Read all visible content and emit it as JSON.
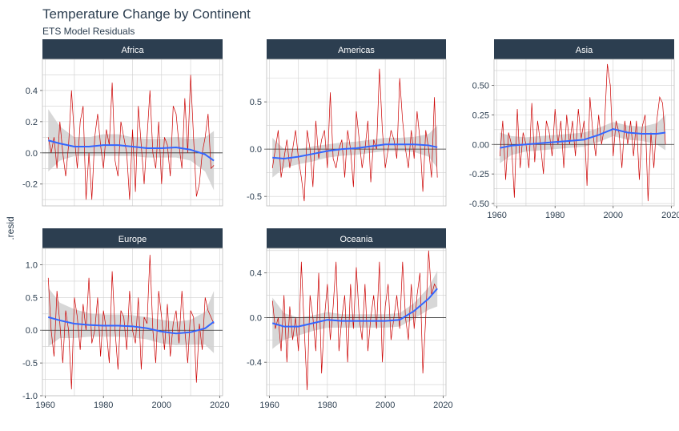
{
  "title": "Temperature Change by Continent",
  "subtitle": "ETS Model Residuals",
  "chart_data": {
    "type": "line",
    "title": "Temperature Change by Continent",
    "subtitle": "ETS Model Residuals",
    "ylabel": ".resid",
    "xlabel": "",
    "colors": {
      "residual": "#cc0000",
      "smooth": "#3366ff",
      "band": "#d0d0d0",
      "strip": "#2c3e50"
    },
    "panels": [
      {
        "name": "Africa",
        "xlim": [
          1959,
          2021
        ],
        "ylim": [
          -0.34,
          0.6
        ],
        "yticks": [
          -0.2,
          0.0,
          0.2,
          0.4
        ],
        "ytick_labels": [
          "-0.2",
          "0.0",
          "0.2",
          "0.4"
        ],
        "xticks": [],
        "x": [
          1961,
          1962,
          1963,
          1964,
          1965,
          1966,
          1967,
          1968,
          1969,
          1970,
          1971,
          1972,
          1973,
          1974,
          1975,
          1976,
          1977,
          1978,
          1979,
          1980,
          1981,
          1982,
          1983,
          1984,
          1985,
          1986,
          1987,
          1988,
          1989,
          1990,
          1991,
          1992,
          1993,
          1994,
          1995,
          1996,
          1997,
          1998,
          1999,
          2000,
          2001,
          2002,
          2003,
          2004,
          2005,
          2006,
          2007,
          2008,
          2009,
          2010,
          2011,
          2012,
          2013,
          2014,
          2015,
          2016,
          2017,
          2018
        ],
        "values": [
          0.1,
          0.0,
          0.1,
          -0.1,
          0.2,
          0.0,
          -0.15,
          0.05,
          0.4,
          0.1,
          -0.1,
          0.2,
          0.3,
          -0.3,
          0.0,
          -0.3,
          0.1,
          0.25,
          0.05,
          -0.1,
          0.15,
          0.05,
          0.45,
          -0.05,
          -0.15,
          0.2,
          0.1,
          0.0,
          -0.3,
          0.15,
          -0.25,
          0.3,
          0.05,
          -0.2,
          0.1,
          0.4,
          0.0,
          -0.1,
          0.2,
          -0.2,
          0.1,
          0.05,
          -0.15,
          0.3,
          0.25,
          0.05,
          -0.1,
          0.35,
          0.0,
          0.5,
          0.1,
          -0.28,
          -0.2,
          0.0,
          0.1,
          0.25,
          -0.1,
          -0.08
        ],
        "smooth_x": [
          1961,
          1965,
          1970,
          1975,
          1980,
          1985,
          1990,
          1995,
          2000,
          2005,
          2010,
          2015,
          2018
        ],
        "smooth_y": [
          0.08,
          0.06,
          0.04,
          0.04,
          0.05,
          0.05,
          0.04,
          0.03,
          0.03,
          0.035,
          0.02,
          -0.01,
          -0.05
        ],
        "band_lo": [
          -0.12,
          -0.05,
          -0.02,
          -0.02,
          -0.02,
          -0.02,
          -0.02,
          -0.03,
          -0.03,
          -0.03,
          -0.05,
          -0.12,
          -0.24
        ],
        "band_hi": [
          0.28,
          0.17,
          0.1,
          0.1,
          0.12,
          0.12,
          0.1,
          0.09,
          0.09,
          0.1,
          0.09,
          0.1,
          0.14
        ]
      },
      {
        "name": "Americas",
        "xlim": [
          1959,
          2021
        ],
        "ylim": [
          -0.6,
          0.95
        ],
        "yticks": [
          -0.5,
          0.0,
          0.5
        ],
        "ytick_labels": [
          "-0.5",
          "0.0",
          "0.5"
        ],
        "xticks": [],
        "x": [
          1961,
          1962,
          1963,
          1964,
          1965,
          1966,
          1967,
          1968,
          1969,
          1970,
          1971,
          1972,
          1973,
          1974,
          1975,
          1976,
          1977,
          1978,
          1979,
          1980,
          1981,
          1982,
          1983,
          1984,
          1985,
          1986,
          1987,
          1988,
          1989,
          1990,
          1991,
          1992,
          1993,
          1994,
          1995,
          1996,
          1997,
          1998,
          1999,
          2000,
          2001,
          2002,
          2003,
          2004,
          2005,
          2006,
          2007,
          2008,
          2009,
          2010,
          2011,
          2012,
          2013,
          2014,
          2015,
          2016,
          2017,
          2018
        ],
        "values": [
          -0.2,
          0.0,
          0.2,
          -0.3,
          -0.1,
          0.1,
          -0.2,
          0.0,
          0.2,
          -0.1,
          -0.3,
          -0.55,
          0.2,
          0.0,
          -0.4,
          0.3,
          -0.1,
          0.1,
          0.2,
          -0.2,
          0.6,
          -0.1,
          -0.2,
          0.0,
          0.1,
          -0.3,
          0.2,
          0.0,
          -0.4,
          0.4,
          0.1,
          -0.2,
          0.0,
          0.3,
          -0.35,
          0.1,
          0.0,
          0.85,
          0.2,
          -0.2,
          0.0,
          0.2,
          0.1,
          -0.1,
          0.75,
          0.3,
          0.0,
          -0.2,
          0.2,
          -0.1,
          0.4,
          0.1,
          -0.45,
          0.2,
          0.0,
          -0.3,
          0.55,
          -0.3
        ],
        "smooth_x": [
          1961,
          1965,
          1970,
          1975,
          1980,
          1985,
          1990,
          1995,
          2000,
          2005,
          2010,
          2015,
          2018
        ],
        "smooth_y": [
          -0.09,
          -0.1,
          -0.08,
          -0.05,
          -0.02,
          0.0,
          0.01,
          0.03,
          0.05,
          0.05,
          0.05,
          0.04,
          0.02
        ],
        "band_lo": [
          -0.3,
          -0.2,
          -0.16,
          -0.13,
          -0.09,
          -0.07,
          -0.06,
          -0.04,
          -0.02,
          -0.02,
          -0.03,
          -0.08,
          -0.2
        ],
        "band_hi": [
          0.12,
          0.0,
          0.0,
          0.03,
          0.05,
          0.07,
          0.08,
          0.1,
          0.12,
          0.12,
          0.13,
          0.16,
          0.25
        ]
      },
      {
        "name": "Asia",
        "xlim": [
          1959,
          2021
        ],
        "ylim": [
          -0.52,
          0.72
        ],
        "yticks": [
          -0.5,
          -0.25,
          0.0,
          0.25,
          0.5
        ],
        "ytick_labels": [
          "-0.50",
          "-0.25",
          "0.00",
          "0.25",
          "0.50"
        ],
        "xticks": [
          1960,
          1980,
          2000,
          2020
        ],
        "xtick_labels": [
          "1960",
          "1980",
          "2000",
          "2020"
        ],
        "x": [
          1961,
          1962,
          1963,
          1964,
          1965,
          1966,
          1967,
          1968,
          1969,
          1970,
          1971,
          1972,
          1973,
          1974,
          1975,
          1976,
          1977,
          1978,
          1979,
          1980,
          1981,
          1982,
          1983,
          1984,
          1985,
          1986,
          1987,
          1988,
          1989,
          1990,
          1991,
          1992,
          1993,
          1994,
          1995,
          1996,
          1997,
          1998,
          1999,
          2000,
          2001,
          2002,
          2003,
          2004,
          2005,
          2006,
          2007,
          2008,
          2009,
          2010,
          2011,
          2012,
          2013,
          2014,
          2015,
          2016,
          2017,
          2018
        ],
        "values": [
          -0.1,
          0.2,
          -0.3,
          0.1,
          0.0,
          -0.45,
          0.3,
          -0.2,
          0.1,
          0.0,
          -0.2,
          0.35,
          -0.15,
          0.2,
          0.0,
          -0.25,
          0.2,
          0.1,
          -0.1,
          0.3,
          0.0,
          0.2,
          -0.2,
          0.25,
          0.0,
          0.2,
          -0.1,
          0.3,
          0.05,
          0.2,
          -0.35,
          0.4,
          0.1,
          -0.1,
          0.25,
          0.0,
          0.15,
          0.68,
          0.5,
          -0.1,
          0.2,
          0.1,
          -0.2,
          0.2,
          0.0,
          0.2,
          -0.1,
          0.2,
          -0.3,
          0.15,
          0.25,
          -0.48,
          0.1,
          -0.2,
          0.2,
          0.4,
          0.35,
          0.0
        ],
        "smooth_x": [
          1961,
          1965,
          1970,
          1975,
          1980,
          1985,
          1990,
          1995,
          2000,
          2005,
          2010,
          2015,
          2018
        ],
        "smooth_y": [
          -0.03,
          -0.01,
          0.0,
          0.01,
          0.02,
          0.03,
          0.04,
          0.08,
          0.13,
          0.1,
          0.09,
          0.09,
          0.1
        ],
        "band_lo": [
          -0.16,
          -0.09,
          -0.06,
          -0.05,
          -0.04,
          -0.03,
          -0.02,
          0.02,
          0.07,
          0.04,
          0.03,
          0.0,
          -0.05
        ],
        "band_hi": [
          0.1,
          0.07,
          0.06,
          0.07,
          0.08,
          0.09,
          0.1,
          0.14,
          0.19,
          0.16,
          0.15,
          0.18,
          0.25
        ]
      },
      {
        "name": "Europe",
        "xlim": [
          1959,
          2021
        ],
        "ylim": [
          -1.0,
          1.25
        ],
        "yticks": [
          -1.0,
          -0.5,
          0.0,
          0.5,
          1.0
        ],
        "ytick_labels": [
          "-1.0",
          "-0.5",
          "0.0",
          "0.5",
          "1.0"
        ],
        "xticks": [
          1960,
          1980,
          2000,
          2020
        ],
        "xtick_labels": [
          "1960",
          "1980",
          "2000",
          "2020"
        ],
        "x": [
          1961,
          1962,
          1963,
          1964,
          1965,
          1966,
          1967,
          1968,
          1969,
          1970,
          1971,
          1972,
          1973,
          1974,
          1975,
          1976,
          1977,
          1978,
          1979,
          1980,
          1981,
          1982,
          1983,
          1984,
          1985,
          1986,
          1987,
          1988,
          1989,
          1990,
          1991,
          1992,
          1993,
          1994,
          1995,
          1996,
          1997,
          1998,
          1999,
          2000,
          2001,
          2002,
          2003,
          2004,
          2005,
          2006,
          2007,
          2008,
          2009,
          2010,
          2011,
          2012,
          2013,
          2014,
          2015,
          2016,
          2017,
          2018
        ],
        "values": [
          0.8,
          0.0,
          -0.4,
          0.6,
          0.1,
          -0.5,
          0.3,
          0.0,
          -0.9,
          0.5,
          0.2,
          -0.3,
          0.4,
          0.0,
          0.8,
          -0.2,
          0.0,
          0.5,
          -0.4,
          0.3,
          0.0,
          -0.5,
          0.9,
          0.0,
          -0.6,
          0.3,
          0.2,
          -0.3,
          0.6,
          0.0,
          -0.2,
          0.5,
          -0.6,
          0.2,
          0.1,
          1.15,
          0.0,
          -0.5,
          0.6,
          0.2,
          -0.3,
          0.4,
          -0.4,
          0.1,
          0.3,
          -0.2,
          0.6,
          0.0,
          -0.5,
          0.3,
          0.2,
          -0.8,
          0.1,
          -0.3,
          0.5,
          0.3,
          0.2,
          0.1
        ],
        "smooth_x": [
          1961,
          1965,
          1970,
          1975,
          1980,
          1985,
          1990,
          1995,
          2000,
          2005,
          2010,
          2015,
          2018
        ],
        "smooth_y": [
          0.2,
          0.15,
          0.1,
          0.08,
          0.07,
          0.07,
          0.06,
          0.03,
          -0.02,
          -0.05,
          -0.03,
          0.03,
          0.13
        ],
        "band_lo": [
          -0.25,
          -0.12,
          -0.12,
          -0.1,
          -0.1,
          -0.1,
          -0.11,
          -0.14,
          -0.2,
          -0.23,
          -0.22,
          -0.22,
          -0.35
        ],
        "band_hi": [
          0.65,
          0.42,
          0.32,
          0.26,
          0.24,
          0.24,
          0.23,
          0.2,
          0.16,
          0.13,
          0.16,
          0.28,
          0.6
        ]
      },
      {
        "name": "Oceania",
        "xlim": [
          1959,
          2021
        ],
        "ylim": [
          -0.7,
          0.62
        ],
        "yticks": [
          -0.4,
          0.0,
          0.4
        ],
        "ytick_labels": [
          "-0.4",
          "0.0",
          "0.4"
        ],
        "xticks": [
          1960,
          1980,
          2000,
          2020
        ],
        "xtick_labels": [
          "1960",
          "1980",
          "2000",
          "2020"
        ],
        "x": [
          1961,
          1962,
          1963,
          1964,
          1965,
          1966,
          1967,
          1968,
          1969,
          1970,
          1971,
          1972,
          1973,
          1974,
          1975,
          1976,
          1977,
          1978,
          1979,
          1980,
          1981,
          1982,
          1983,
          1984,
          1985,
          1986,
          1987,
          1988,
          1989,
          1990,
          1991,
          1992,
          1993,
          1994,
          1995,
          1996,
          1997,
          1998,
          1999,
          2000,
          2001,
          2002,
          2003,
          2004,
          2005,
          2006,
          2007,
          2008,
          2009,
          2010,
          2011,
          2012,
          2013,
          2014,
          2015,
          2016,
          2017,
          2018
        ],
        "values": [
          0.15,
          -0.1,
          0.0,
          -0.3,
          0.2,
          -0.4,
          0.1,
          -0.2,
          0.0,
          -0.3,
          0.5,
          -0.1,
          -0.65,
          0.2,
          0.0,
          -0.3,
          0.4,
          -0.5,
          0.0,
          0.3,
          -0.2,
          0.1,
          0.5,
          -0.3,
          0.0,
          0.2,
          -0.4,
          0.3,
          -0.1,
          0.45,
          0.0,
          -0.2,
          0.3,
          -0.3,
          0.0,
          0.2,
          -0.1,
          0.5,
          -0.4,
          0.1,
          0.3,
          -0.2,
          0.0,
          0.2,
          -0.1,
          0.5,
          0.0,
          -0.2,
          0.3,
          -0.1,
          0.2,
          0.4,
          -0.5,
          0.0,
          0.6,
          0.2,
          0.3,
          0.25
        ],
        "smooth_x": [
          1961,
          1965,
          1970,
          1975,
          1980,
          1985,
          1990,
          1995,
          2000,
          2005,
          2010,
          2015,
          2018
        ],
        "smooth_y": [
          -0.05,
          -0.08,
          -0.08,
          -0.05,
          -0.02,
          -0.03,
          -0.03,
          -0.03,
          -0.03,
          -0.02,
          0.06,
          0.17,
          0.26
        ],
        "band_lo": [
          -0.28,
          -0.2,
          -0.16,
          -0.12,
          -0.09,
          -0.09,
          -0.09,
          -0.09,
          -0.09,
          -0.08,
          -0.01,
          0.07,
          0.1
        ],
        "band_hi": [
          0.18,
          0.04,
          0.0,
          0.02,
          0.05,
          0.03,
          0.03,
          0.03,
          0.03,
          0.04,
          0.13,
          0.27,
          0.42
        ]
      }
    ]
  }
}
